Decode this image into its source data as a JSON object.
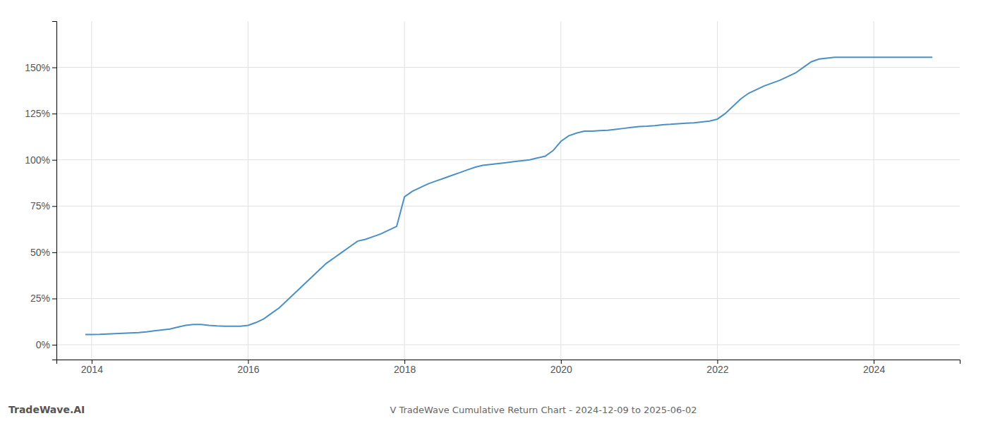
{
  "chart_data": {
    "type": "line",
    "title": "V TradeWave Cumulative Return Chart - 2024-12-09 to 2025-06-02",
    "annotations": [
      "TradeWave.AI"
    ],
    "color": "#4a90c4",
    "grid": true,
    "x": [
      2013.92,
      2014.0,
      2014.1,
      2014.2,
      2014.3,
      2014.4,
      2014.5,
      2014.6,
      2014.7,
      2014.8,
      2014.9,
      2015.0,
      2015.1,
      2015.2,
      2015.3,
      2015.4,
      2015.5,
      2015.6,
      2015.7,
      2015.8,
      2015.9,
      2016.0,
      2016.1,
      2016.2,
      2016.3,
      2016.4,
      2016.5,
      2016.6,
      2016.7,
      2016.8,
      2016.9,
      2017.0,
      2017.1,
      2017.2,
      2017.3,
      2017.4,
      2017.5,
      2017.6,
      2017.7,
      2017.8,
      2017.9,
      2018.0,
      2018.1,
      2018.2,
      2018.3,
      2018.4,
      2018.5,
      2018.6,
      2018.7,
      2018.8,
      2018.9,
      2019.0,
      2019.1,
      2019.2,
      2019.3,
      2019.4,
      2019.5,
      2019.6,
      2019.7,
      2019.8,
      2019.9,
      2020.0,
      2020.1,
      2020.2,
      2020.3,
      2020.4,
      2020.5,
      2020.6,
      2020.7,
      2020.8,
      2020.9,
      2021.0,
      2021.1,
      2021.2,
      2021.3,
      2021.4,
      2021.5,
      2021.6,
      2021.7,
      2021.8,
      2021.9,
      2022.0,
      2022.1,
      2022.2,
      2022.3,
      2022.4,
      2022.5,
      2022.6,
      2022.7,
      2022.8,
      2022.9,
      2023.0,
      2023.1,
      2023.2,
      2023.3,
      2023.4,
      2023.5,
      2023.6,
      2023.7,
      2023.8,
      2023.9,
      2024.0,
      2024.1,
      2024.2,
      2024.3,
      2024.4,
      2024.5,
      2024.6,
      2024.7,
      2024.75
    ],
    "values": [
      5.5,
      5.5,
      5.6,
      5.8,
      6.0,
      6.2,
      6.4,
      6.6,
      7.0,
      7.5,
      8.0,
      8.5,
      9.5,
      10.5,
      11.0,
      11.0,
      10.5,
      10.2,
      10.0,
      10.0,
      10.0,
      10.5,
      12.0,
      14.0,
      17.0,
      20.0,
      24.0,
      28.0,
      32.0,
      36.0,
      40.0,
      44.0,
      47.0,
      50.0,
      53.0,
      56.0,
      57.0,
      58.5,
      60.0,
      62.0,
      64.0,
      80.0,
      83.0,
      85.0,
      87.0,
      88.5,
      90.0,
      91.5,
      93.0,
      94.5,
      96.0,
      97.0,
      97.5,
      98.0,
      98.5,
      99.0,
      99.5,
      100.0,
      101.0,
      102.0,
      105.0,
      110.0,
      113.0,
      114.5,
      115.5,
      115.5,
      115.8,
      116.0,
      116.5,
      117.0,
      117.5,
      118.0,
      118.2,
      118.5,
      119.0,
      119.2,
      119.5,
      119.8,
      120.0,
      120.5,
      121.0,
      122.0,
      125.0,
      129.0,
      133.0,
      136.0,
      138.0,
      140.0,
      141.5,
      143.0,
      145.0,
      147.0,
      150.0,
      153.0,
      154.5,
      155.0,
      155.5,
      155.5,
      155.5,
      155.5,
      155.5,
      155.5,
      155.5,
      155.5,
      155.5,
      155.5,
      155.5,
      155.5,
      155.5,
      155.5
    ],
    "xlim": [
      2013.55,
      2025.1
    ],
    "xticks": [
      2014,
      2016,
      2018,
      2020,
      2022,
      2024
    ],
    "ylim": [
      -8,
      175
    ],
    "yticks": [
      {
        "value": 0,
        "label": "0%"
      },
      {
        "value": 25,
        "label": "25%"
      },
      {
        "value": 50,
        "label": "50%"
      },
      {
        "value": 75,
        "label": "75%"
      },
      {
        "value": 100,
        "label": "100%"
      },
      {
        "value": 125,
        "label": "125%"
      },
      {
        "value": 150,
        "label": "150%"
      }
    ]
  }
}
